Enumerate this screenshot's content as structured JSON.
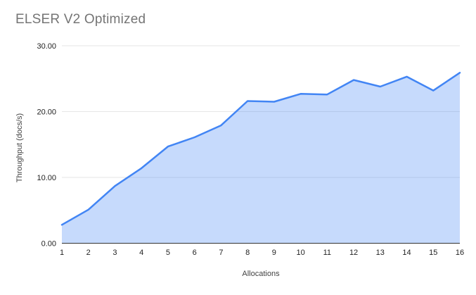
{
  "chart_data": {
    "type": "area",
    "title": "ELSER V2 Optimized",
    "xlabel": "Allocations",
    "ylabel": "Throughput (docs/s)",
    "x": [
      1,
      2,
      3,
      4,
      5,
      6,
      7,
      8,
      9,
      10,
      11,
      12,
      13,
      14,
      15,
      16
    ],
    "values": [
      2.8,
      5.1,
      8.7,
      11.4,
      14.7,
      16.1,
      17.9,
      21.6,
      21.5,
      22.7,
      22.6,
      24.8,
      23.8,
      25.3,
      23.2,
      25.9
    ],
    "ylim": [
      0,
      30
    ],
    "yticks": [
      0,
      10,
      20,
      30
    ],
    "ytick_labels": [
      "0.00",
      "10.00",
      "20.00",
      "30.00"
    ],
    "grid": "horizontal",
    "legend": "none",
    "colors": {
      "line": "#4285f4",
      "fill": "#4285F44D",
      "grid": "#e6e6e6",
      "axis": "#333333",
      "title": "#757575",
      "tick": "#222222",
      "axis_title": "#424242"
    }
  }
}
